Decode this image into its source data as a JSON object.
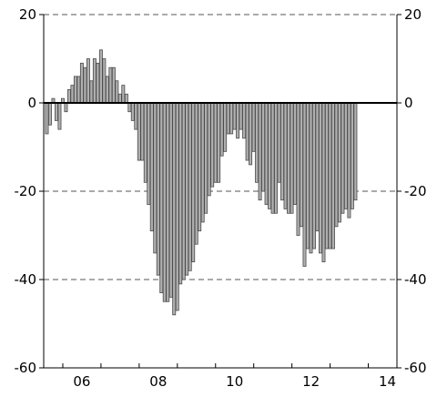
{
  "chart_data": {
    "type": "bar",
    "title": "",
    "xlabel": "",
    "ylabel": "",
    "ylim": [
      -60,
      20
    ],
    "x_range": [
      2005.5,
      2014.75
    ],
    "y_ticks": [
      20,
      0,
      -20,
      -40,
      -60
    ],
    "y_tick_labels": [
      "20",
      "0",
      "-20",
      "-40",
      "-60"
    ],
    "x_ticks": [
      2006,
      2008,
      2010,
      2012,
      2014
    ],
    "x_tick_labels": [
      "06",
      "08",
      "10",
      "12",
      "14"
    ],
    "grid": true,
    "legend": "none",
    "bar_color": "#b0b0b0",
    "bar_edge_color": "#4a4a4a",
    "series": [
      {
        "x_start": 2005.583,
        "x_step": 0.0833,
        "values": [
          -7,
          -5,
          1,
          -4,
          -6,
          1,
          -2,
          3,
          4,
          6,
          6,
          9,
          8,
          10,
          5,
          10,
          9,
          12,
          10,
          6,
          8,
          8,
          5,
          2,
          4,
          2,
          -2,
          -4,
          -6,
          -13,
          -13,
          -18,
          -23,
          -29,
          -34,
          -39,
          -43,
          -45,
          -45,
          -44,
          -48,
          -47,
          -41,
          -40,
          -39,
          -38,
          -36,
          -32,
          -29,
          -27,
          -25,
          -21,
          -19,
          -18,
          -18,
          -12,
          -11,
          -7,
          -7,
          -6,
          -8,
          -6,
          -8,
          -13,
          -14,
          -11,
          -18,
          -22,
          -20,
          -23,
          -24,
          -25,
          -25,
          -18,
          -22,
          -24,
          -25,
          -25,
          -23,
          -30,
          -28,
          -37,
          -33,
          -34,
          -33,
          -29,
          -34,
          -36,
          -33,
          -33,
          -33,
          -28,
          -27,
          -25,
          -24,
          -26,
          -24,
          -22
        ]
      }
    ]
  }
}
